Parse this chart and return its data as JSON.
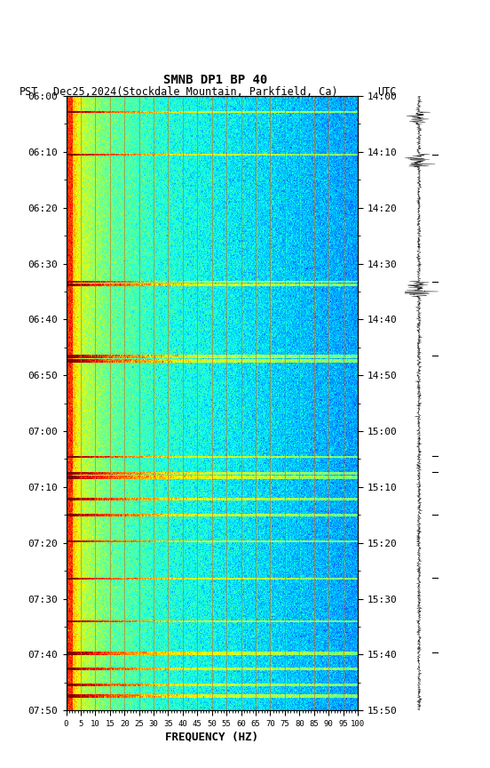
{
  "title_line1": "SMNB DP1 BP 40",
  "title_line2_left": "PST",
  "title_line2_center": "Dec25,2024(Stockdale Mountain, Parkfield, Ca)",
  "title_line2_right": "UTC",
  "xlabel": "FREQUENCY (HZ)",
  "freq_min": 0,
  "freq_max": 100,
  "freq_ticks": [
    0,
    5,
    10,
    15,
    20,
    25,
    30,
    35,
    40,
    45,
    50,
    55,
    60,
    65,
    70,
    75,
    80,
    85,
    90,
    95,
    100
  ],
  "y_ticks_pst": [
    "06:00",
    "06:10",
    "06:20",
    "06:30",
    "06:40",
    "06:50",
    "07:00",
    "07:10",
    "07:20",
    "07:30",
    "07:40",
    "07:50"
  ],
  "y_ticks_utc": [
    "14:00",
    "14:10",
    "14:20",
    "14:30",
    "14:40",
    "14:50",
    "15:00",
    "15:10",
    "15:20",
    "15:30",
    "15:40",
    "15:50"
  ],
  "background_color": "#ffffff",
  "colormap": "jet",
  "figsize": [
    5.52,
    8.64
  ],
  "dpi": 100,
  "event_rows": [
    [
      15,
      17
    ],
    [
      55,
      57
    ],
    [
      175,
      177
    ],
    [
      178,
      180
    ],
    [
      245,
      248
    ],
    [
      249,
      252
    ],
    [
      340,
      342
    ],
    [
      355,
      358
    ],
    [
      359,
      362
    ],
    [
      380,
      382
    ],
    [
      395,
      397
    ],
    [
      420,
      422
    ],
    [
      455,
      457
    ],
    [
      495,
      497
    ],
    [
      525,
      528
    ],
    [
      540,
      542
    ],
    [
      555,
      557
    ],
    [
      565,
      568
    ]
  ],
  "waveform_tick_rows": [
    55,
    175,
    245,
    340,
    355,
    395,
    455,
    525
  ]
}
